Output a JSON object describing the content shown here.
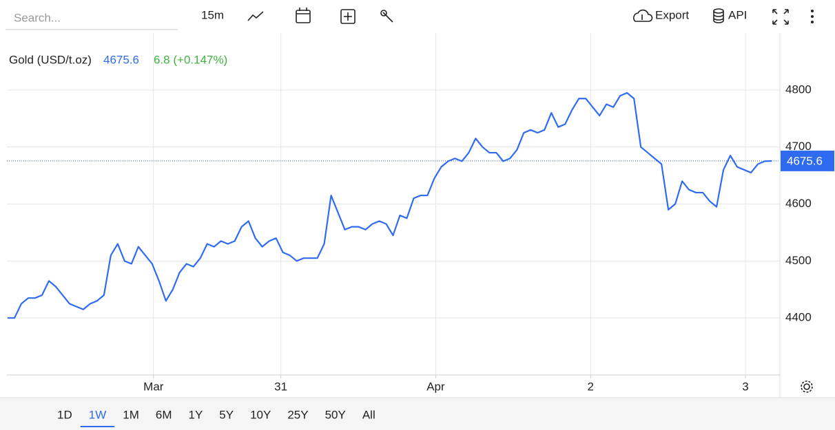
{
  "toolbar": {
    "search_placeholder": "Search...",
    "interval": "15m",
    "export": "Export",
    "api": "API"
  },
  "chart_data": {
    "type": "line",
    "title": "Gold (USD/t.oz)",
    "last_value": 4675.6,
    "change": "6.8 (+0.147%)",
    "series": [
      {
        "name": "Gold (USD/t.oz)",
        "color": "#2f6bf0",
        "values": [
          4400,
          4400,
          4425,
          4435,
          4435,
          4440,
          4465,
          4455,
          4440,
          4425,
          4420,
          4415,
          4425,
          4430,
          4440,
          4510,
          4530,
          4500,
          4495,
          4525,
          4510,
          4495,
          4465,
          4430,
          4450,
          4480,
          4495,
          4490,
          4505,
          4530,
          4525,
          4535,
          4530,
          4535,
          4560,
          4570,
          4540,
          4525,
          4535,
          4540,
          4515,
          4510,
          4500,
          4505,
          4505,
          4505,
          4530,
          4615,
          4585,
          4555,
          4560,
          4560,
          4555,
          4565,
          4570,
          4565,
          4545,
          4580,
          4575,
          4610,
          4615,
          4615,
          4645,
          4665,
          4675,
          4680,
          4675,
          4690,
          4715,
          4700,
          4690,
          4690,
          4675,
          4680,
          4695,
          4725,
          4730,
          4725,
          4730,
          4760,
          4735,
          4740,
          4765,
          4785,
          4785,
          4770,
          4755,
          4775,
          4770,
          4790,
          4795,
          4785,
          4700,
          4690,
          4680,
          4670,
          4590,
          4600,
          4640,
          4625,
          4620,
          4620,
          4605,
          4595,
          4660,
          4685,
          4665,
          4660,
          4655,
          4670,
          4675,
          4675.6
        ]
      }
    ],
    "xlim": [
      -0.1,
      112.2
    ],
    "xticks": [
      {
        "value": 21.2,
        "label": "Mar"
      },
      {
        "value": 39.7,
        "label": "31"
      },
      {
        "value": 62.2,
        "label": "Apr"
      },
      {
        "value": 84.7,
        "label": "2"
      },
      {
        "value": 107.2,
        "label": "3"
      }
    ],
    "ylim": [
      4300,
      4900
    ],
    "yticks": [
      4400,
      4500,
      4600,
      4700,
      4800
    ],
    "grid": true
  },
  "ranges": {
    "items": [
      "1D",
      "1W",
      "1M",
      "6M",
      "1Y",
      "5Y",
      "10Y",
      "25Y",
      "50Y",
      "All"
    ],
    "selected": 1
  }
}
